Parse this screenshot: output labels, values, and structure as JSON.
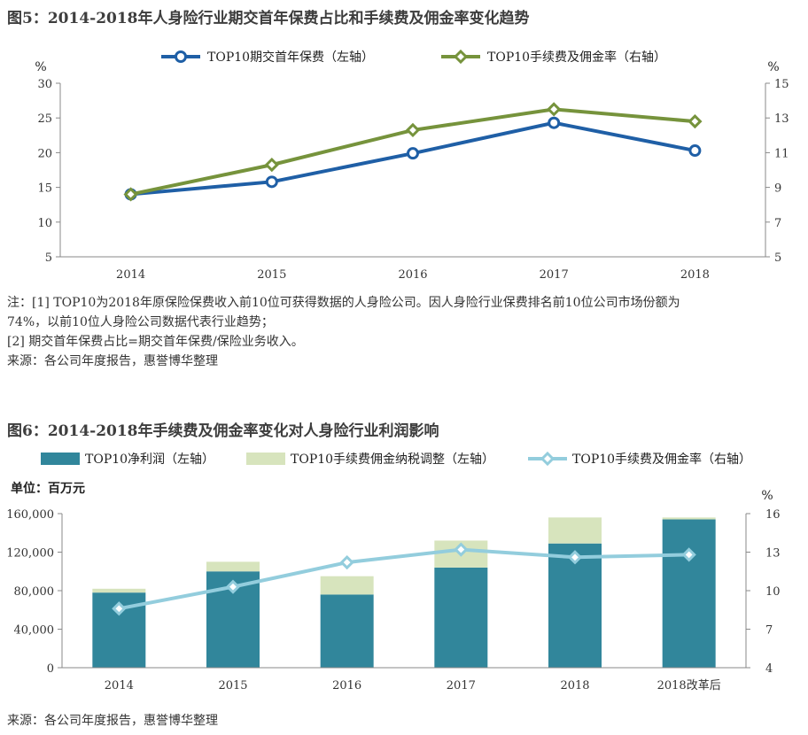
{
  "figure1": {
    "title": "图5：2014-2018年人身险行业期交首年保费占比和手续费及佣金率变化趋势",
    "notes": [
      "注：[1] TOP10为2018年原保险保费收入前10位可获得数据的人身险公司。因人身险行业保费排名前10位公司市场份额为",
      "74%，以前10位人身险公司数据代表行业趋势；",
      "[2] 期交首年保费占比=期交首年保费/保险业务收入。",
      "来源：各公司年度报告，惠誉博华整理"
    ]
  },
  "figure2": {
    "title": "图6：2014-2018年手续费及佣金率变化对人身险行业利润影响",
    "unit_label": "单位：百万元",
    "source": "来源：各公司年度报告，惠誉博华整理"
  },
  "colors": {
    "blue_line": "#1f5fa6",
    "green_line": "#76933c",
    "teal_bar": "#31869b",
    "light_green_bar": "#d7e4bd",
    "light_blue_line": "#93cddd"
  },
  "chart_data": [
    {
      "type": "line",
      "categories": [
        "2014",
        "2015",
        "2016",
        "2017",
        "2018"
      ],
      "left_axis": {
        "label": "%",
        "ylim": [
          5,
          30
        ],
        "ticks": [
          "5",
          "10",
          "15",
          "20",
          "25",
          "30"
        ]
      },
      "right_axis": {
        "label": "%",
        "ylim": [
          5,
          15
        ],
        "ticks": [
          "5",
          "7",
          "9",
          "11",
          "13",
          "15"
        ]
      },
      "series": [
        {
          "name": "TOP10期交首年保费（左轴）",
          "axis": "left",
          "values": [
            14.0,
            15.8,
            19.9,
            24.3,
            20.3
          ]
        },
        {
          "name": "TOP10手续费及佣金率（右轴）",
          "axis": "right",
          "values": [
            8.6,
            10.3,
            12.3,
            13.5,
            12.8
          ]
        }
      ],
      "grid": false,
      "legend": "top-center"
    },
    {
      "type": "bar",
      "categories": [
        "2014",
        "2015",
        "2016",
        "2017",
        "2018",
        "2018改革后"
      ],
      "left_axis": {
        "ylim": [
          0,
          160000
        ],
        "ticks": [
          "0",
          "40,000",
          "80,000",
          "120,000",
          "160,000"
        ]
      },
      "right_axis": {
        "label": "%",
        "ylim": [
          4,
          16
        ],
        "ticks": [
          "4",
          "7",
          "10",
          "13",
          "16"
        ]
      },
      "series": [
        {
          "name": "TOP10净利润（左轴）",
          "type": "bar",
          "stack": "a",
          "axis": "left",
          "values": [
            78000,
            100000,
            76000,
            104000,
            129000,
            154000
          ]
        },
        {
          "name": "TOP10手续费佣金纳税调整（左轴）",
          "type": "bar",
          "stack": "a",
          "axis": "left",
          "values": [
            4000,
            10000,
            19000,
            28000,
            27000,
            2000
          ]
        },
        {
          "name": "TOP10手续费及佣金率（右轴）",
          "type": "line",
          "axis": "right",
          "values": [
            8.6,
            10.3,
            12.2,
            13.2,
            12.6,
            12.8
          ]
        }
      ],
      "grid": false,
      "legend": "top"
    }
  ]
}
